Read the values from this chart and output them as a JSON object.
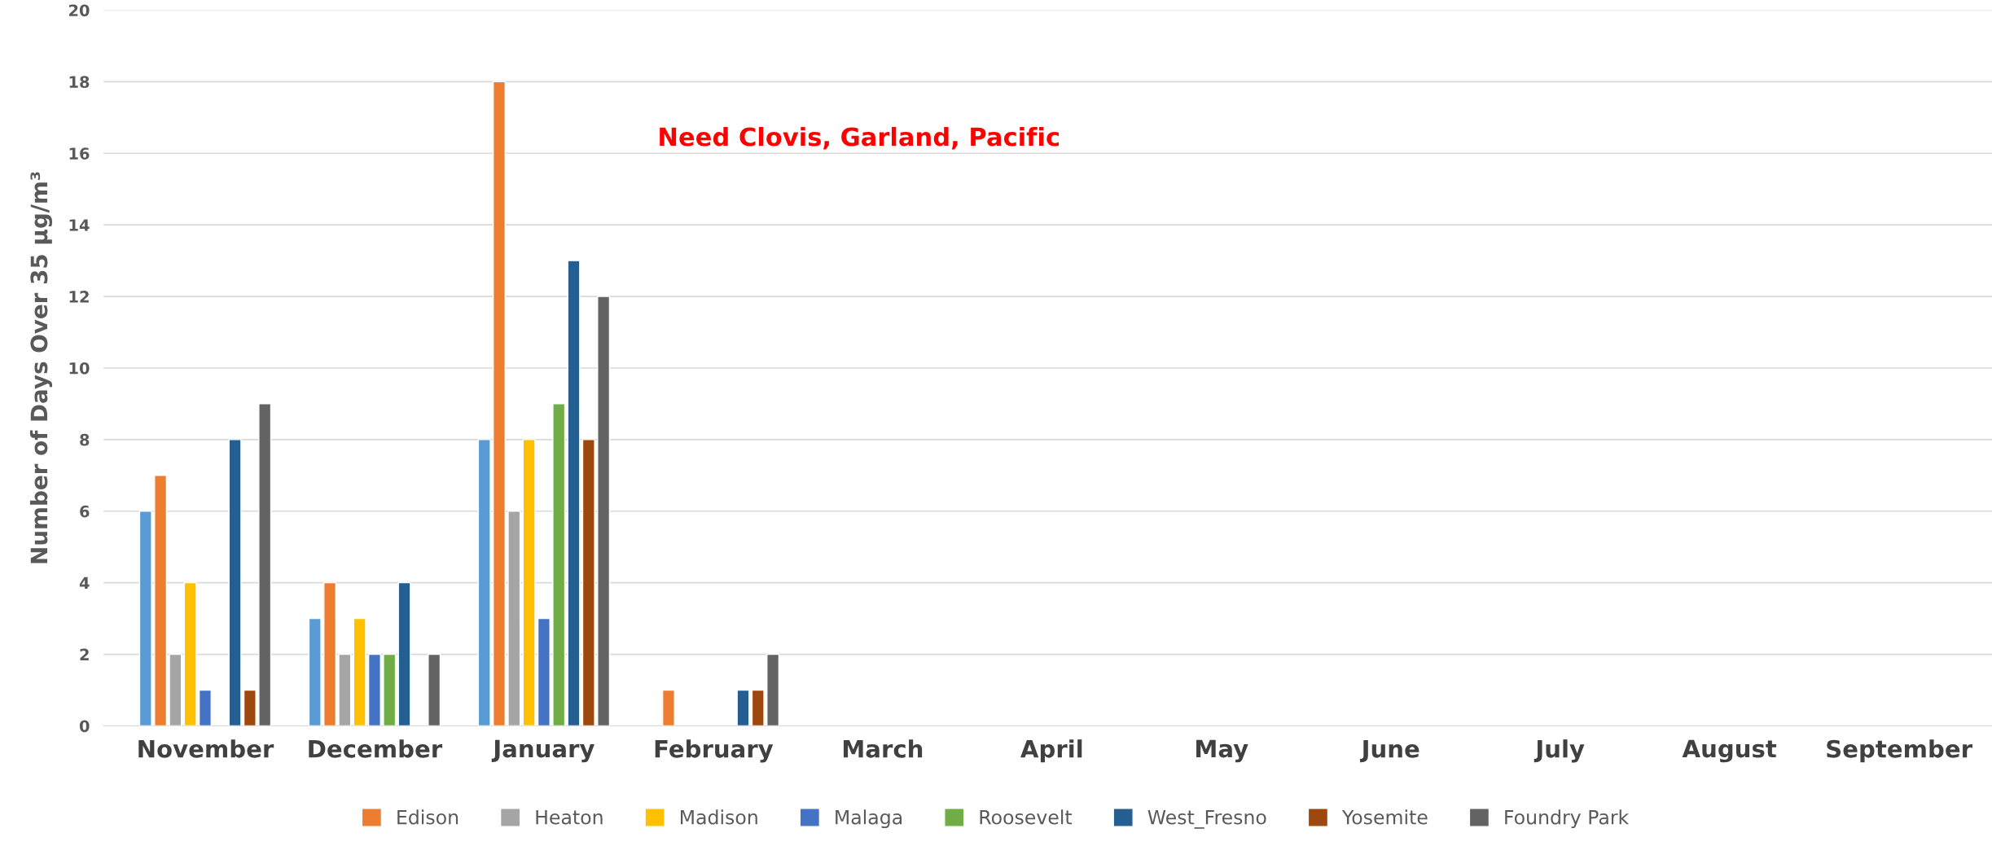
{
  "chart_data": {
    "type": "bar",
    "ylabel": "Number of Days Over 35 µg/m³",
    "categories": [
      "November",
      "December",
      "January",
      "February",
      "March",
      "April",
      "May",
      "June",
      "July",
      "August",
      "September"
    ],
    "series": [
      {
        "color": "#5b9bd5",
        "values": [
          6,
          3,
          8,
          null,
          null,
          null,
          null,
          null,
          null,
          null,
          null
        ]
      },
      {
        "name": "Edison",
        "color": "#ed7d31",
        "values": [
          7,
          4,
          18,
          1,
          null,
          null,
          null,
          null,
          null,
          null,
          null
        ]
      },
      {
        "name": "Heaton",
        "color": "#a5a5a5",
        "values": [
          2,
          2,
          6,
          null,
          null,
          null,
          null,
          null,
          null,
          null,
          null
        ]
      },
      {
        "name": "Madison",
        "color": "#ffc000",
        "values": [
          4,
          3,
          8,
          null,
          null,
          null,
          null,
          null,
          null,
          null,
          null
        ]
      },
      {
        "name": "Malaga",
        "color": "#4472c4",
        "values": [
          1,
          2,
          3,
          null,
          null,
          null,
          null,
          null,
          null,
          null,
          null
        ]
      },
      {
        "name": "Roosevelt",
        "color": "#70ad47",
        "values": [
          null,
          2,
          9,
          null,
          null,
          null,
          null,
          null,
          null,
          null,
          null
        ]
      },
      {
        "name": "West_Fresno",
        "color": "#255e91",
        "values": [
          8,
          4,
          13,
          1,
          null,
          null,
          null,
          null,
          null,
          null,
          null
        ]
      },
      {
        "name": "Yosemite",
        "color": "#9e480e",
        "values": [
          1,
          null,
          8,
          1,
          null,
          null,
          null,
          null,
          null,
          null,
          null
        ]
      },
      {
        "name": "Foundry Park",
        "color": "#636363",
        "values": [
          9,
          2,
          12,
          2,
          null,
          null,
          null,
          null,
          null,
          null,
          null
        ]
      }
    ],
    "ylim": [
      0,
      20
    ],
    "yticks": [
      0,
      2,
      4,
      6,
      8,
      10,
      12,
      14,
      16,
      18,
      20
    ],
    "grid": "y",
    "legend": "bottom",
    "annotations": [
      "Need Clovis, Garland, Pacific"
    ]
  }
}
